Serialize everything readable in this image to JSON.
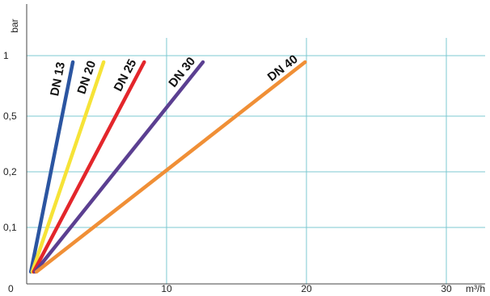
{
  "chart_data": {
    "type": "line",
    "ylabel": "bar",
    "xlabel": "m³/h",
    "grid": true,
    "x_ticks": [
      {
        "value": 0,
        "label": "0"
      },
      {
        "value": 10,
        "label": "10"
      },
      {
        "value": 20,
        "label": "20"
      },
      {
        "value": 30,
        "label": "30"
      }
    ],
    "y_ticks": [
      {
        "label": "0,1"
      },
      {
        "label": "0,2"
      },
      {
        "label": "0,5"
      },
      {
        "label": "1"
      }
    ],
    "series": [
      {
        "name": "DN 13",
        "color": "#2b55a1",
        "start": {
          "x": 0.3,
          "y": "0"
        },
        "end": {
          "x": 3.3,
          "y": "1"
        }
      },
      {
        "name": "DN 20",
        "color": "#f6e337",
        "start": {
          "x": 0.4,
          "y": "0"
        },
        "end": {
          "x": 5.5,
          "y": "1"
        }
      },
      {
        "name": "DN 25",
        "color": "#e3262b",
        "start": {
          "x": 0.5,
          "y": "0"
        },
        "end": {
          "x": 8.4,
          "y": "1"
        }
      },
      {
        "name": "DN 30",
        "color": "#5b3f91",
        "start": {
          "x": 0.6,
          "y": "0"
        },
        "end": {
          "x": 12.6,
          "y": "1"
        }
      },
      {
        "name": "DN 40",
        "color": "#f08f36",
        "start": {
          "x": 0.7,
          "y": "0"
        },
        "end": {
          "x": 19.9,
          "y": "1"
        }
      }
    ]
  }
}
